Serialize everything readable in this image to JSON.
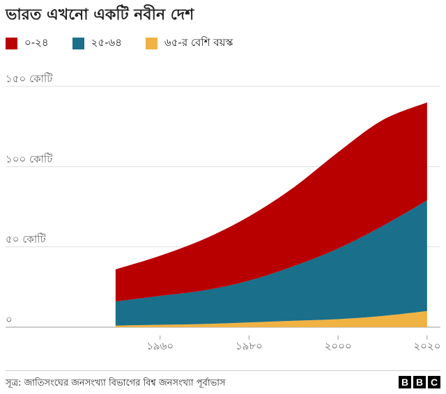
{
  "title": "ভারত এখনো একটি নবীন দেশ",
  "source": "সূত্র: জাতিসংঘের জনসংখ্যা বিভাগের বিশ্ব জনসংখ্যা পূর্বাভাস",
  "logo": [
    "B",
    "B",
    "C"
  ],
  "legend": [
    {
      "label": "০-২৪",
      "color": "#b80000"
    },
    {
      "label": "২৫-৬৪",
      "color": "#1a6f8a"
    },
    {
      "label": "৬৫-র বেশি বয়স্ক",
      "color": "#f0b243"
    }
  ],
  "chart_data": {
    "type": "area",
    "stacked": true,
    "x": [
      1950,
      1960,
      1970,
      1980,
      1990,
      2000,
      2010,
      2020
    ],
    "series": [
      {
        "name": "৬৫-র বেশি বয়স্ক",
        "color": "#f0b243",
        "values": [
          1,
          1.5,
          2,
          3,
          4,
          5,
          7,
          10
        ]
      },
      {
        "name": "২৫-৬৪",
        "color": "#1a6f8a",
        "values": [
          15,
          18,
          21,
          26,
          34,
          44,
          56,
          69
        ]
      },
      {
        "name": "০-২৪",
        "color": "#b80000",
        "values": [
          20,
          25,
          32,
          40,
          49,
          60,
          66,
          61
        ]
      }
    ],
    "ylim": [
      0,
      150
    ],
    "yticks": [
      {
        "value": 0,
        "label": "০"
      },
      {
        "value": 50,
        "label": "৫০ কোটি"
      },
      {
        "value": 100,
        "label": "১০০ কোটি"
      },
      {
        "value": 150,
        "label": "১৫০ কোটি"
      }
    ],
    "xlim": [
      1940,
      2023
    ],
    "xticks": [
      {
        "value": 1960,
        "label": "১৯৬০"
      },
      {
        "value": 1980,
        "label": "১৯৮০"
      },
      {
        "value": 2000,
        "label": "২০০০"
      },
      {
        "value": 2020,
        "label": "২০২০"
      }
    ],
    "grid": true,
    "legend_position": "top-left"
  }
}
